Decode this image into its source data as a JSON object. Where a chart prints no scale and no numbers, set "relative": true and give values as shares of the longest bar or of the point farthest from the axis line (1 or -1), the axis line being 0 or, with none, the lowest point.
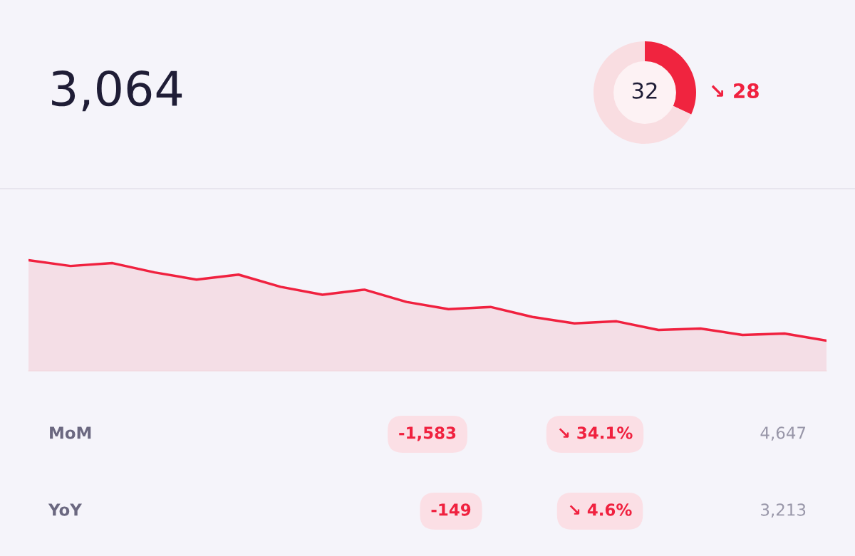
{
  "chart_data": [
    {
      "type": "other",
      "annotations": [
        "3,064",
        "MoM",
        "-1,583",
        "↘ 34.1%",
        "4,647",
        "YoY",
        "-149",
        "↘ 4.6%",
        "3,213"
      ]
    },
    {
      "type": "donut",
      "categories": [
        null,
        null
      ],
      "values": [
        32,
        68
      ],
      "colors": [
        "#f0243f",
        "#f9dde1"
      ],
      "annotations": [
        "32",
        "↘ 28"
      ]
    },
    {
      "type": "area",
      "relative": true,
      "categories": [
        null,
        null,
        null,
        null,
        null,
        null,
        null,
        null,
        null,
        null,
        null,
        null,
        null,
        null,
        null,
        null,
        null,
        null,
        null,
        null
      ],
      "series": [
        {
          "color": "#f0213f",
          "values": [
            1,
            0.948,
            0.974,
            0.89,
            0.825,
            0.87,
            0.76,
            0.688,
            0.734,
            0.623,
            0.558,
            0.578,
            0.487,
            0.429,
            0.448,
            0.37,
            0.383,
            0.325,
            0.338,
            0.273
          ]
        }
      ]
    }
  ]
}
